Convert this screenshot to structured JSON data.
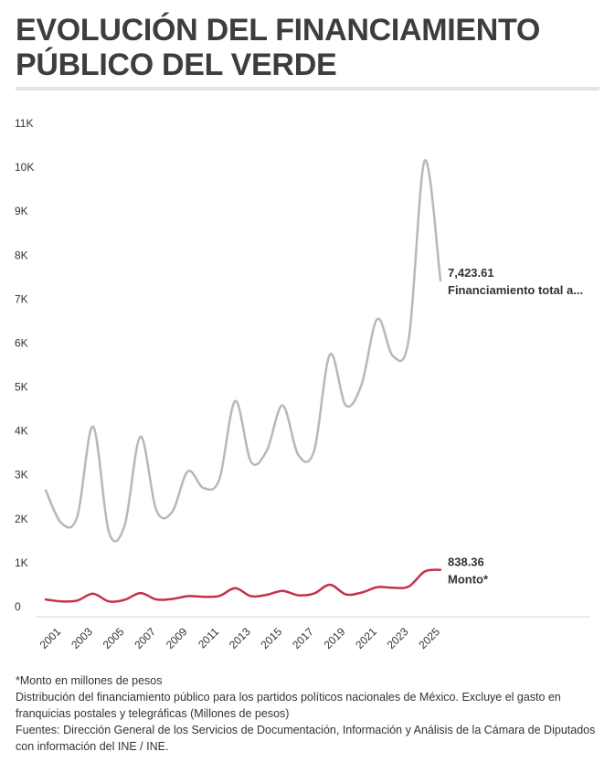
{
  "title": "EVOLUCIÓN DEL FINANCIAMIENTO PÚBLICO DEL VERDE",
  "notes": {
    "footnote": "*Monto en millones de pesos",
    "description": "Distribución del financiamiento público para los partidos políticos nacionales de México. Excluye el gasto en franquicias postales y telegráficas (Millones de pesos)",
    "sources": "Fuentes: Dirección General de los Servicios de Documentación, Información y Análisis de la Cámara de Diputados con información del INE / INE."
  },
  "colors": {
    "total": "#b8b8b8",
    "monto": "#c4314b",
    "text": "#333333",
    "title": "#3d3d3d"
  },
  "chart_data": {
    "type": "line",
    "x": [
      2000,
      2001,
      2002,
      2003,
      2004,
      2005,
      2006,
      2007,
      2008,
      2009,
      2010,
      2011,
      2012,
      2013,
      2014,
      2015,
      2016,
      2017,
      2018,
      2019,
      2020,
      2021,
      2022,
      2023,
      2024,
      2025
    ],
    "x_tick_labels": [
      "2001",
      "2003",
      "2005",
      "2007",
      "2009",
      "2011",
      "2013",
      "2015",
      "2017",
      "2019",
      "2021",
      "2023",
      "2025"
    ],
    "x_tick_values": [
      2001,
      2003,
      2005,
      2007,
      2009,
      2011,
      2013,
      2015,
      2017,
      2019,
      2021,
      2023,
      2025
    ],
    "y_ticks": [
      0,
      1000,
      2000,
      3000,
      4000,
      5000,
      6000,
      7000,
      8000,
      9000,
      10000,
      11000
    ],
    "y_tick_labels": [
      "0",
      "1K",
      "2K",
      "3K",
      "4K",
      "5K",
      "6K",
      "7K",
      "8K",
      "9K",
      "10K",
      "11K"
    ],
    "ylim": [
      0,
      11000
    ],
    "xlim": [
      2000,
      2025
    ],
    "grid": false,
    "series": [
      {
        "name": "Financiamiento total a...",
        "end_label": "7,423.61",
        "values": [
          2650,
          1900,
          2050,
          4100,
          1700,
          1850,
          3870,
          2200,
          2150,
          3080,
          2700,
          2900,
          4680,
          3300,
          3550,
          4580,
          3450,
          3550,
          5740,
          4580,
          5050,
          6550,
          5700,
          6100,
          10150,
          7423.61
        ]
      },
      {
        "name": "Monto*",
        "end_label": "838.36",
        "values": [
          165,
          120,
          140,
          295,
          120,
          155,
          310,
          165,
          175,
          240,
          225,
          245,
          420,
          240,
          270,
          360,
          260,
          300,
          500,
          280,
          320,
          445,
          430,
          460,
          800,
          838.36
        ]
      }
    ]
  }
}
